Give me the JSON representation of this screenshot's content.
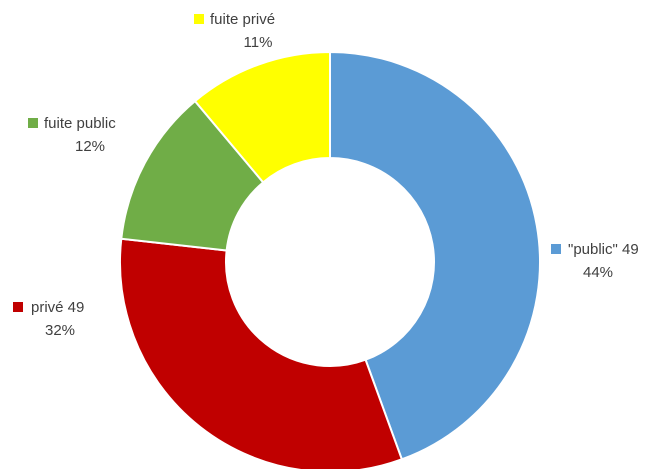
{
  "chart_data": {
    "type": "pie",
    "variant": "donut",
    "title": "",
    "legend": "none",
    "slices": [
      {
        "name": "\"public\" 49",
        "percent_label": "44%",
        "value": 44,
        "color": "#5b9bd5"
      },
      {
        "name": "privé 49",
        "percent_label": "32%",
        "value": 32,
        "color": "#c00000"
      },
      {
        "name": "fuite public",
        "percent_label": "12%",
        "value": 12,
        "color": "#70ad47"
      },
      {
        "name": "fuite privé",
        "percent_label": "11%",
        "value": 11,
        "color": "#ffff00"
      }
    ]
  }
}
